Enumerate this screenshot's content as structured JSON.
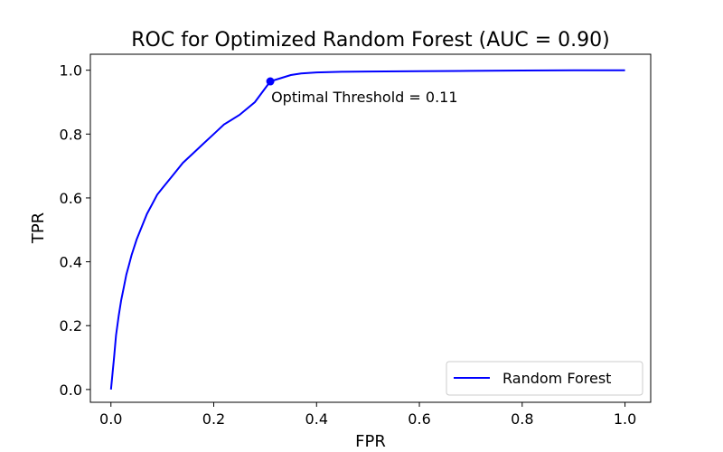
{
  "chart_data": {
    "type": "line",
    "title": "ROC for Optimized Random Forest (AUC = 0.90)",
    "xlabel": "FPR",
    "ylabel": "TPR",
    "xlim": [
      -0.04,
      1.05
    ],
    "ylim": [
      -0.04,
      1.05
    ],
    "xticks": [
      0.0,
      0.2,
      0.4,
      0.6,
      0.8,
      1.0
    ],
    "xtick_labels": [
      "0.0",
      "0.2",
      "0.4",
      "0.6",
      "0.8",
      "1.0"
    ],
    "yticks": [
      0.0,
      0.2,
      0.4,
      0.6,
      0.8,
      1.0
    ],
    "ytick_labels": [
      "0.0",
      "0.2",
      "0.4",
      "0.6",
      "0.8",
      "1.0"
    ],
    "grid": false,
    "legend_position": "lower-right",
    "series": [
      {
        "name": "Random Forest",
        "color": "#0000ff",
        "x": [
          0.0,
          0.003,
          0.006,
          0.01,
          0.015,
          0.02,
          0.025,
          0.03,
          0.035,
          0.04,
          0.05,
          0.06,
          0.07,
          0.08,
          0.09,
          0.1,
          0.12,
          0.14,
          0.16,
          0.18,
          0.2,
          0.22,
          0.25,
          0.28,
          0.31,
          0.33,
          0.35,
          0.37,
          0.4,
          0.45,
          0.5,
          0.6,
          0.7,
          0.8,
          0.9,
          1.0
        ],
        "y": [
          0.0,
          0.05,
          0.1,
          0.17,
          0.23,
          0.28,
          0.32,
          0.36,
          0.39,
          0.42,
          0.47,
          0.51,
          0.55,
          0.58,
          0.61,
          0.63,
          0.67,
          0.71,
          0.74,
          0.77,
          0.8,
          0.83,
          0.86,
          0.9,
          0.965,
          0.975,
          0.985,
          0.99,
          0.993,
          0.995,
          0.996,
          0.997,
          0.998,
          0.999,
          0.9995,
          1.0
        ]
      }
    ],
    "marker": {
      "x": 0.31,
      "y": 0.965,
      "color": "#0000ff"
    },
    "annotation": {
      "text": "Optimal Threshold = 0.11",
      "x": 0.31,
      "y": 0.965
    }
  }
}
